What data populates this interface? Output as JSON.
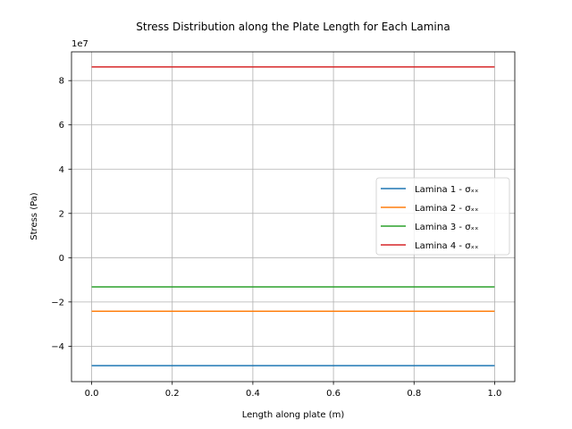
{
  "chart_data": {
    "type": "line",
    "title": "Stress Distribution along the Plate Length for Each Lamina",
    "xlabel": "Length along plate (m)",
    "ylabel": "Stress (Pa)",
    "y_scale_label": "1e7",
    "xlim": [
      -0.05,
      1.05
    ],
    "ylim": [
      -56000000.0,
      93000000.0
    ],
    "x_ticks": [
      0.0,
      0.2,
      0.4,
      0.6,
      0.8,
      1.0
    ],
    "x_tick_labels": [
      "0.0",
      "0.2",
      "0.4",
      "0.6",
      "0.8",
      "1.0"
    ],
    "y_ticks": [
      -40000000.0,
      -20000000.0,
      0,
      20000000.0,
      40000000.0,
      60000000.0,
      80000000.0
    ],
    "y_tick_labels": [
      "−4",
      "−2",
      "0",
      "2",
      "4",
      "6",
      "8"
    ],
    "grid": true,
    "legend_position": "center-right",
    "x": [
      0.0,
      1.0
    ],
    "series": [
      {
        "name": "Lamina 1 - σₓₓ",
        "color": "#1f77b4",
        "values": [
          -48800000.0,
          -48800000.0
        ]
      },
      {
        "name": "Lamina 2 - σₓₓ",
        "color": "#ff7f0e",
        "values": [
          -24200000.0,
          -24200000.0
        ]
      },
      {
        "name": "Lamina 3 - σₓₓ",
        "color": "#2ca02c",
        "values": [
          -13200000.0,
          -13200000.0
        ]
      },
      {
        "name": "Lamina 4 - σₓₓ",
        "color": "#d62728",
        "values": [
          86200000.0,
          86200000.0
        ]
      }
    ]
  }
}
